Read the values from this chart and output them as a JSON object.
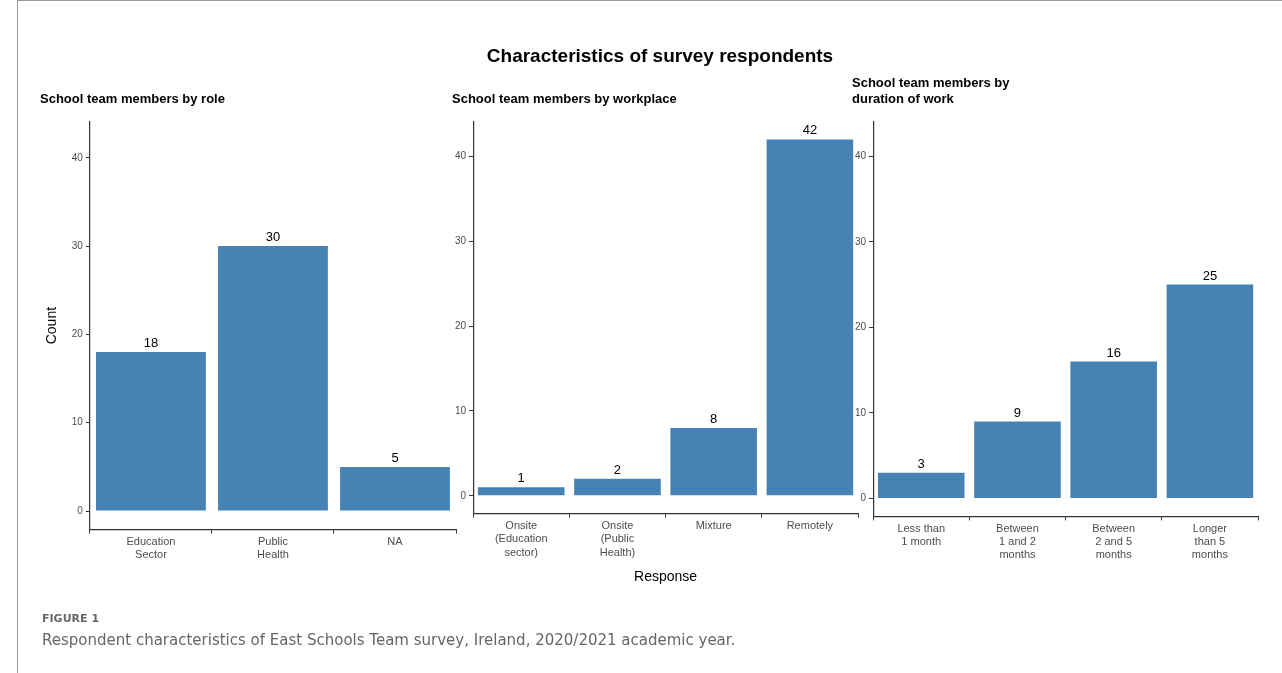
{
  "chart_data": [
    {
      "type": "bar",
      "title": "School team members by role",
      "ylabel": "Count",
      "categories": [
        "Education\nSector",
        "Public\nHealth",
        "NA"
      ],
      "values": [
        18,
        30,
        5
      ],
      "color": "#4682b4",
      "ylim": [
        -2.1,
        44.1
      ],
      "yticks": [
        0,
        10,
        20,
        30,
        40
      ],
      "grid": false,
      "legend": false,
      "data_labels": true,
      "annotations": [
        "Characteristics of survey respondents",
        "FIGURE 1",
        "Respondent characteristics of East Schools Team survey, Ireland, 2020/2021 academic year."
      ]
    },
    {
      "type": "bar",
      "title": "School team members by workplace",
      "xlabel": "Response",
      "categories": [
        "Onsite\n(Education\nsector)",
        "Onsite\n(Public\nHealth)",
        "Mixture",
        "Remotely"
      ],
      "values": [
        1,
        2,
        8,
        42
      ],
      "color": "#4682b4",
      "ylim": [
        -2.1,
        44.1
      ],
      "yticks": [
        0,
        10,
        20,
        30,
        40
      ],
      "grid": false,
      "legend": false,
      "data_labels": true
    },
    {
      "type": "bar",
      "title": "School team members by\nduration of work",
      "categories": [
        "Less than\n1 month",
        "Between\n1 and 2\nmonths",
        "Between\n2 and 5\nmonths",
        "Longer\nthan 5\nmonths"
      ],
      "values": [
        3,
        9,
        16,
        25
      ],
      "color": "#4682b4",
      "ylim": [
        -2.1,
        44.1
      ],
      "yticks": [
        0,
        10,
        20,
        30,
        40
      ],
      "grid": false,
      "legend": false,
      "data_labels": true
    }
  ]
}
